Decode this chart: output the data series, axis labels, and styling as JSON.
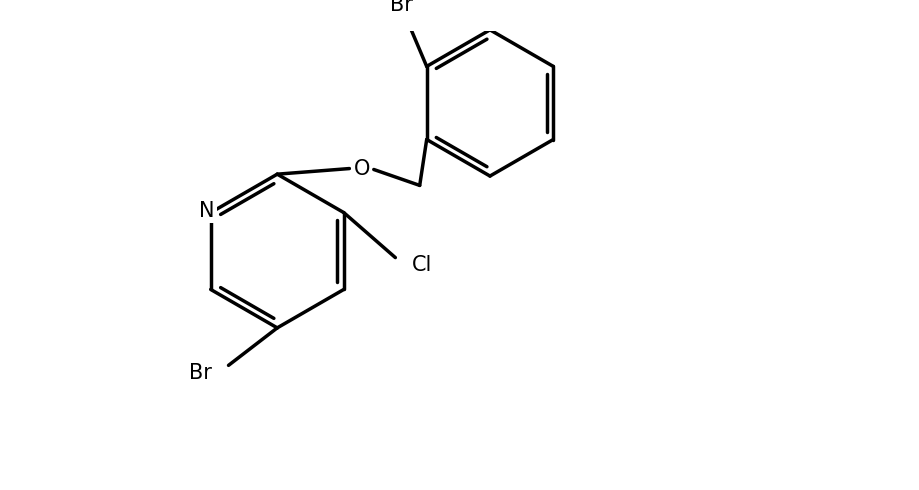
{
  "background_color": "#ffffff",
  "line_color": "#000000",
  "line_width": 2.5,
  "font_size": 15,
  "labels": {
    "N": "N",
    "O": "O",
    "Br_pyridine": "Br",
    "Cl": "Cl",
    "Br_phenyl": "Br"
  },
  "xlim": [
    0.0,
    9.2
  ],
  "ylim": [
    0.0,
    4.9
  ]
}
